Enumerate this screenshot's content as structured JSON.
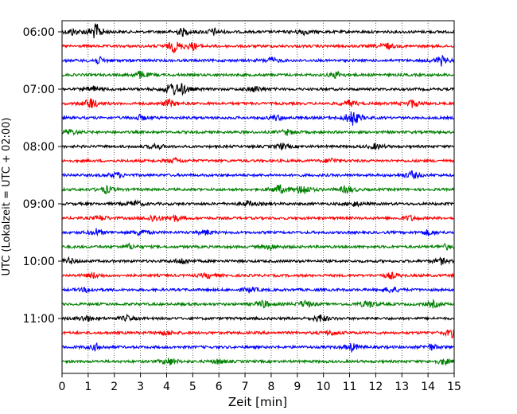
{
  "chart_data": {
    "type": "line",
    "title": "",
    "xlabel": "Zeit  [min]",
    "ylabel": "UTC (Lokalzeit = UTC + 02:00)",
    "xlim": [
      0,
      15
    ],
    "x_ticks": [
      "0",
      "1",
      "2",
      "3",
      "4",
      "5",
      "6",
      "7",
      "8",
      "9",
      "10",
      "11",
      "12",
      "13",
      "14",
      "15"
    ],
    "vertical_gridlines": true,
    "row_spacing_minutes": 15,
    "row_colors": [
      "#000000",
      "#ff0000",
      "#0000ff",
      "#008000"
    ],
    "y_tick_labels": [
      {
        "row": 0,
        "label": "06:00"
      },
      {
        "row": 4,
        "label": "07:00"
      },
      {
        "row": 8,
        "label": "08:00"
      },
      {
        "row": 12,
        "label": "09:00"
      },
      {
        "row": 16,
        "label": "10:00"
      },
      {
        "row": 20,
        "label": "11:00"
      }
    ],
    "rows": [
      {
        "time": "06:00",
        "events": [
          {
            "minute": 1.3,
            "amplitude": 1.0
          },
          {
            "minute": 0.4,
            "amplitude": 0.4
          },
          {
            "minute": 4.6,
            "amplitude": 0.45
          },
          {
            "minute": 5.8,
            "amplitude": 0.4
          },
          {
            "minute": 9.2,
            "amplitude": 0.35
          }
        ]
      },
      {
        "time": "06:15",
        "events": [
          {
            "minute": 4.3,
            "amplitude": 0.7
          },
          {
            "minute": 5.0,
            "amplitude": 0.4
          },
          {
            "minute": 12.4,
            "amplitude": 0.4
          }
        ]
      },
      {
        "time": "06:30",
        "events": [
          {
            "minute": 1.4,
            "amplitude": 0.4
          },
          {
            "minute": 8.0,
            "amplitude": 0.35
          },
          {
            "minute": 14.5,
            "amplitude": 0.55
          }
        ]
      },
      {
        "time": "06:45",
        "events": [
          {
            "minute": 3.0,
            "amplitude": 0.45
          },
          {
            "minute": 10.5,
            "amplitude": 0.4
          }
        ]
      },
      {
        "time": "07:00",
        "events": [
          {
            "minute": 4.2,
            "amplitude": 0.75
          },
          {
            "minute": 4.6,
            "amplitude": 0.5
          },
          {
            "minute": 1.2,
            "amplitude": 0.35
          },
          {
            "minute": 7.4,
            "amplitude": 0.35
          }
        ]
      },
      {
        "time": "07:15",
        "events": [
          {
            "minute": 1.1,
            "amplitude": 0.65
          },
          {
            "minute": 4.1,
            "amplitude": 0.45
          },
          {
            "minute": 11.0,
            "amplitude": 0.4
          },
          {
            "minute": 13.4,
            "amplitude": 0.45
          }
        ]
      },
      {
        "time": "07:30",
        "events": [
          {
            "minute": 11.1,
            "amplitude": 1.0
          },
          {
            "minute": 3.0,
            "amplitude": 0.3
          },
          {
            "minute": 8.2,
            "amplitude": 0.3
          }
        ]
      },
      {
        "time": "07:45",
        "events": [
          {
            "minute": 0.3,
            "amplitude": 0.35
          },
          {
            "minute": 8.6,
            "amplitude": 0.3
          }
        ]
      },
      {
        "time": "08:00",
        "events": [
          {
            "minute": 3.6,
            "amplitude": 0.3
          },
          {
            "minute": 8.4,
            "amplitude": 0.3
          },
          {
            "minute": 12.0,
            "amplitude": 0.3
          }
        ]
      },
      {
        "time": "08:15",
        "events": [
          {
            "minute": 4.3,
            "amplitude": 0.3
          },
          {
            "minute": 10.3,
            "amplitude": 0.3
          }
        ]
      },
      {
        "time": "08:30",
        "events": [
          {
            "minute": 2.1,
            "amplitude": 0.35
          },
          {
            "minute": 13.4,
            "amplitude": 0.45
          }
        ]
      },
      {
        "time": "08:45",
        "events": [
          {
            "minute": 1.7,
            "amplitude": 0.45
          },
          {
            "minute": 8.3,
            "amplitude": 0.55
          },
          {
            "minute": 9.2,
            "amplitude": 0.7
          },
          {
            "minute": 10.9,
            "amplitude": 0.45
          }
        ]
      },
      {
        "time": "09:00",
        "events": [
          {
            "minute": 2.8,
            "amplitude": 0.35
          },
          {
            "minute": 7.1,
            "amplitude": 0.3
          },
          {
            "minute": 11.2,
            "amplitude": 0.3
          }
        ]
      },
      {
        "time": "09:15",
        "events": [
          {
            "minute": 1.5,
            "amplitude": 0.3
          },
          {
            "minute": 3.5,
            "amplitude": 0.45
          },
          {
            "minute": 4.3,
            "amplitude": 0.35
          },
          {
            "minute": 13.3,
            "amplitude": 0.3
          }
        ]
      },
      {
        "time": "09:30",
        "events": [
          {
            "minute": 1.3,
            "amplitude": 0.4
          },
          {
            "minute": 3.0,
            "amplitude": 0.4
          },
          {
            "minute": 5.5,
            "amplitude": 0.3
          },
          {
            "minute": 14.0,
            "amplitude": 0.3
          }
        ]
      },
      {
        "time": "09:45",
        "events": [
          {
            "minute": 2.6,
            "amplitude": 0.3
          },
          {
            "minute": 8.0,
            "amplitude": 0.3
          },
          {
            "minute": 14.7,
            "amplitude": 0.3
          }
        ]
      },
      {
        "time": "10:00",
        "events": [
          {
            "minute": 0.3,
            "amplitude": 0.35
          },
          {
            "minute": 4.6,
            "amplitude": 0.35
          },
          {
            "minute": 14.5,
            "amplitude": 0.35
          }
        ]
      },
      {
        "time": "10:15",
        "events": [
          {
            "minute": 1.2,
            "amplitude": 0.3
          },
          {
            "minute": 5.6,
            "amplitude": 0.3
          },
          {
            "minute": 12.6,
            "amplitude": 0.35
          }
        ]
      },
      {
        "time": "10:30",
        "events": [
          {
            "minute": 1.0,
            "amplitude": 0.3
          },
          {
            "minute": 7.2,
            "amplitude": 0.3
          },
          {
            "minute": 12.6,
            "amplitude": 0.4
          }
        ]
      },
      {
        "time": "10:45",
        "events": [
          {
            "minute": 7.7,
            "amplitude": 0.45
          },
          {
            "minute": 9.3,
            "amplitude": 0.45
          },
          {
            "minute": 11.7,
            "amplitude": 0.5
          },
          {
            "minute": 14.2,
            "amplitude": 0.35
          }
        ]
      },
      {
        "time": "11:00",
        "events": [
          {
            "minute": 0.9,
            "amplitude": 0.4
          },
          {
            "minute": 2.5,
            "amplitude": 0.3
          },
          {
            "minute": 9.9,
            "amplitude": 0.45
          }
        ]
      },
      {
        "time": "11:15",
        "events": [
          {
            "minute": 4.0,
            "amplitude": 0.3
          },
          {
            "minute": 10.3,
            "amplitude": 0.3
          },
          {
            "minute": 14.9,
            "amplitude": 0.5
          }
        ]
      },
      {
        "time": "11:30",
        "events": [
          {
            "minute": 1.3,
            "amplitude": 0.35
          },
          {
            "minute": 11.1,
            "amplitude": 0.45
          },
          {
            "minute": 14.1,
            "amplitude": 0.35
          }
        ]
      },
      {
        "time": "11:45",
        "events": [
          {
            "minute": 4.1,
            "amplitude": 0.45
          },
          {
            "minute": 6.0,
            "amplitude": 0.3
          },
          {
            "minute": 14.6,
            "amplitude": 0.35
          }
        ]
      }
    ]
  }
}
